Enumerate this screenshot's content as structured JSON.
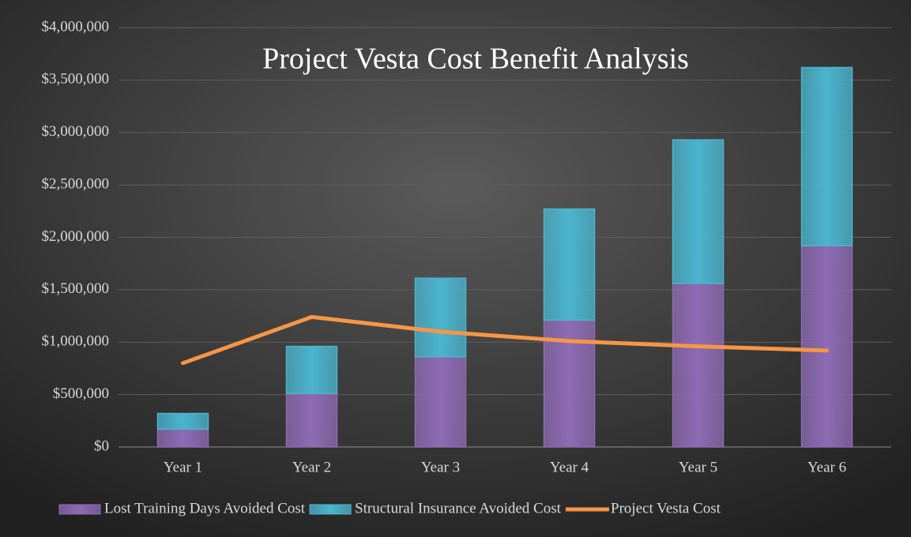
{
  "chart_data": {
    "type": "stacked-bar-line",
    "title": "Project Vesta Cost Benefit Analysis",
    "categories": [
      "Year 1",
      "Year 2",
      "Year 3",
      "Year 4",
      "Year 5",
      "Year 6"
    ],
    "series": [
      {
        "name": "Lost Training Days Avoided Cost",
        "color": "#8e6bb5",
        "type": "bar",
        "values": [
          170000,
          510000,
          860000,
          1210000,
          1560000,
          1920000
        ]
      },
      {
        "name": "Structural Insurance Avoided Cost",
        "color": "#4bb5cf",
        "type": "bar",
        "values": [
          150000,
          450000,
          750000,
          1060000,
          1370000,
          1700000
        ]
      },
      {
        "name": "Project Vesta Cost",
        "color": "#f79646",
        "type": "line",
        "values": [
          800000,
          1240000,
          1100000,
          1010000,
          960000,
          920000
        ]
      }
    ],
    "ylim": [
      0,
      4000000
    ],
    "yticks": [
      {
        "value": 0,
        "label": "$0"
      },
      {
        "value": 500000,
        "label": "$500,000"
      },
      {
        "value": 1000000,
        "label": "$1,000,000"
      },
      {
        "value": 1500000,
        "label": "$1,500,000"
      },
      {
        "value": 2000000,
        "label": "$2,000,000"
      },
      {
        "value": 2500000,
        "label": "$2,500,000"
      },
      {
        "value": 3000000,
        "label": "$3,000,000"
      },
      {
        "value": 3500000,
        "label": "$3,500,000"
      },
      {
        "value": 4000000,
        "label": "$4,000,000"
      }
    ],
    "grid": true,
    "legend": "bottom"
  }
}
